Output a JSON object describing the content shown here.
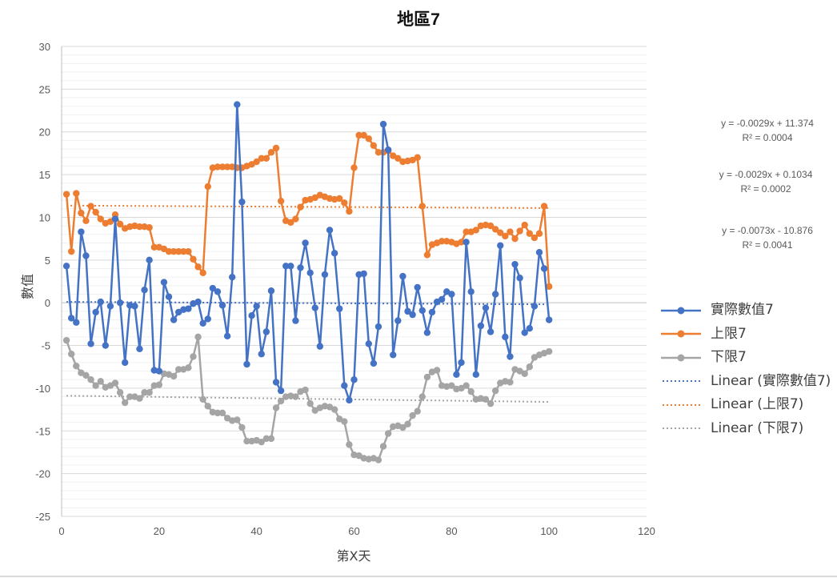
{
  "chart": {
    "title": "地區7",
    "xlabel": "第X天",
    "ylabel": "數值",
    "x_ticks": [
      "0",
      "20",
      "40",
      "60",
      "80",
      "100",
      "120"
    ],
    "y_ticks": [
      "30",
      "25",
      "20",
      "15",
      "10",
      "5",
      "0",
      "-5",
      "-10",
      "-15",
      "-20",
      "-25"
    ],
    "trendline_equations": [
      {
        "equation": "y = -0.0029x + 11.374",
        "r2": "R² = 0.0004"
      },
      {
        "equation": "y = -0.0029x + 0.1034",
        "r2": "R² = 0.0002"
      },
      {
        "equation": "y = -0.0073x - 10.876",
        "r2": "R² = 0.0041"
      }
    ],
    "legend": [
      {
        "label": "實際數值7",
        "color": "#4472C4",
        "style": "line-marker"
      },
      {
        "label": "上限7",
        "color": "#ED7D31",
        "style": "line-marker"
      },
      {
        "label": "下限7",
        "color": "#A5A5A5",
        "style": "line-marker"
      },
      {
        "label": "Linear (實際數值7)",
        "color": "#4472C4",
        "style": "dotted"
      },
      {
        "label": "Linear (上限7)",
        "color": "#ED7D31",
        "style": "dotted"
      },
      {
        "label": "Linear (下限7)",
        "color": "#A5A5A5",
        "style": "dotted"
      }
    ]
  },
  "chart_data": {
    "type": "line",
    "title": "地區7",
    "xlabel": "第X天",
    "ylabel": "數值",
    "xlim": [
      0,
      120
    ],
    "ylim": [
      -25,
      30
    ],
    "x_major_step": 20,
    "y_major_step": 5,
    "y_minor_step": 1,
    "grid": true,
    "legend_position": "right",
    "x": [
      1,
      2,
      3,
      4,
      5,
      6,
      7,
      8,
      9,
      10,
      11,
      12,
      13,
      14,
      15,
      16,
      17,
      18,
      19,
      20,
      21,
      22,
      23,
      24,
      25,
      26,
      27,
      28,
      29,
      30,
      31,
      32,
      33,
      34,
      35,
      36,
      37,
      38,
      39,
      40,
      41,
      42,
      43,
      44,
      45,
      46,
      47,
      48,
      49,
      50,
      51,
      52,
      53,
      54,
      55,
      56,
      57,
      58,
      59,
      60,
      61,
      62,
      63,
      64,
      65,
      66,
      67,
      68,
      69,
      70,
      71,
      72,
      73,
      74,
      75,
      76,
      77,
      78,
      79,
      80,
      81,
      82,
      83,
      84,
      85,
      86,
      87,
      88,
      89,
      90,
      91,
      92,
      93,
      94,
      95,
      96,
      97,
      98,
      99,
      100
    ],
    "series": [
      {
        "name": "實際數值7",
        "color": "#4472C4",
        "values": [
          4.3,
          -1.8,
          -2.3,
          8.3,
          5.5,
          -4.8,
          -1.1,
          0.1,
          -5.0,
          -0.4,
          9.8,
          0.0,
          -7.0,
          -0.3,
          -0.4,
          -5.4,
          1.5,
          5.0,
          -7.9,
          -8.0,
          2.4,
          0.7,
          -2.0,
          -1.1,
          -0.8,
          -0.7,
          -0.1,
          0.1,
          -2.4,
          -1.9,
          1.7,
          1.3,
          -0.3,
          -3.9,
          3.0,
          23.2,
          11.8,
          -7.2,
          -1.5,
          -0.4,
          -6.0,
          -3.4,
          1.4,
          -9.3,
          -10.3,
          4.3,
          4.3,
          -2.1,
          4.1,
          7.0,
          3.5,
          -0.6,
          -5.1,
          3.3,
          8.5,
          5.8,
          -0.7,
          -9.7,
          -11.4,
          -9.0,
          3.3,
          3.4,
          -4.8,
          -7.1,
          -2.8,
          20.9,
          17.9,
          -6.1,
          -2.1,
          3.1,
          -1.0,
          -1.4,
          1.8,
          -0.9,
          -3.5,
          -1.1,
          0.1,
          0.4,
          1.3,
          1.0,
          -8.4,
          -7.0,
          7.1,
          1.3,
          -8.4,
          -2.7,
          -0.6,
          -3.4,
          1.0,
          6.7,
          -4.0,
          -6.3,
          4.5,
          2.9,
          -3.5,
          -3.0,
          -0.4,
          5.9,
          4.0,
          -2.0
        ]
      },
      {
        "name": "上限7",
        "color": "#ED7D31",
        "values": [
          12.7,
          6.0,
          12.8,
          10.5,
          9.6,
          11.3,
          10.6,
          9.8,
          9.3,
          9.5,
          10.3,
          9.2,
          8.7,
          8.9,
          9.0,
          8.9,
          8.9,
          8.8,
          6.5,
          6.5,
          6.3,
          6.0,
          6.0,
          6.0,
          6.0,
          6.0,
          5.1,
          4.2,
          3.5,
          13.6,
          15.8,
          15.9,
          15.9,
          15.9,
          15.9,
          15.8,
          15.8,
          16.0,
          16.2,
          16.5,
          16.9,
          16.9,
          17.6,
          18.1,
          11.9,
          9.6,
          9.4,
          9.8,
          11.2,
          12.0,
          12.1,
          12.3,
          12.6,
          12.4,
          12.2,
          12.1,
          12.2,
          11.7,
          10.7,
          15.8,
          19.6,
          19.6,
          19.2,
          18.4,
          17.6,
          17.6,
          17.8,
          17.2,
          16.9,
          16.5,
          16.6,
          16.7,
          17.0,
          11.3,
          5.6,
          6.8,
          7.0,
          7.2,
          7.2,
          7.1,
          6.9,
          7.1,
          8.3,
          8.3,
          8.5,
          9.0,
          9.1,
          9.0,
          8.6,
          8.2,
          7.8,
          8.3,
          7.5,
          8.4,
          9.1,
          8.1,
          7.6,
          8.1,
          11.3,
          1.9
        ]
      },
      {
        "name": "下限7",
        "color": "#A5A5A5",
        "values": [
          -4.4,
          -6.0,
          -7.4,
          -8.2,
          -8.5,
          -9.0,
          -9.7,
          -9.2,
          -9.9,
          -9.7,
          -9.4,
          -10.5,
          -11.7,
          -11.0,
          -11.0,
          -11.2,
          -10.5,
          -10.5,
          -9.7,
          -9.6,
          -8.3,
          -8.4,
          -8.6,
          -7.8,
          -7.8,
          -7.6,
          -6.3,
          -4.0,
          -11.3,
          -12.1,
          -12.8,
          -12.9,
          -12.9,
          -13.5,
          -13.8,
          -13.7,
          -14.6,
          -16.2,
          -16.2,
          -16.1,
          -16.3,
          -15.9,
          -15.9,
          -12.3,
          -11.5,
          -11.0,
          -10.9,
          -11.0,
          -10.4,
          -10.2,
          -11.8,
          -12.6,
          -12.3,
          -12.1,
          -12.2,
          -12.5,
          -13.6,
          -13.9,
          -16.6,
          -17.8,
          -17.9,
          -18.2,
          -18.3,
          -18.2,
          -18.4,
          -16.8,
          -15.3,
          -14.5,
          -14.4,
          -14.6,
          -14.2,
          -13.2,
          -12.7,
          -11.0,
          -8.7,
          -8.1,
          -7.9,
          -9.7,
          -9.8,
          -9.7,
          -10.1,
          -10.0,
          -9.7,
          -10.4,
          -11.3,
          -11.2,
          -11.3,
          -11.8,
          -10.3,
          -9.4,
          -9.2,
          -9.3,
          -7.8,
          -8.0,
          -8.3,
          -7.5,
          -6.4,
          -6.1,
          -5.9,
          -5.7
        ]
      }
    ],
    "trendlines": [
      {
        "name": "Linear (實際數值7)",
        "color": "#4472C4",
        "slope": -0.0029,
        "intercept": 0.1034,
        "r2": 0.0002
      },
      {
        "name": "Linear (上限7)",
        "color": "#ED7D31",
        "slope": -0.0029,
        "intercept": 11.374,
        "r2": 0.0004
      },
      {
        "name": "Linear (下限7)",
        "color": "#A5A5A5",
        "slope": -0.0073,
        "intercept": -10.876,
        "r2": 0.0041
      }
    ]
  }
}
